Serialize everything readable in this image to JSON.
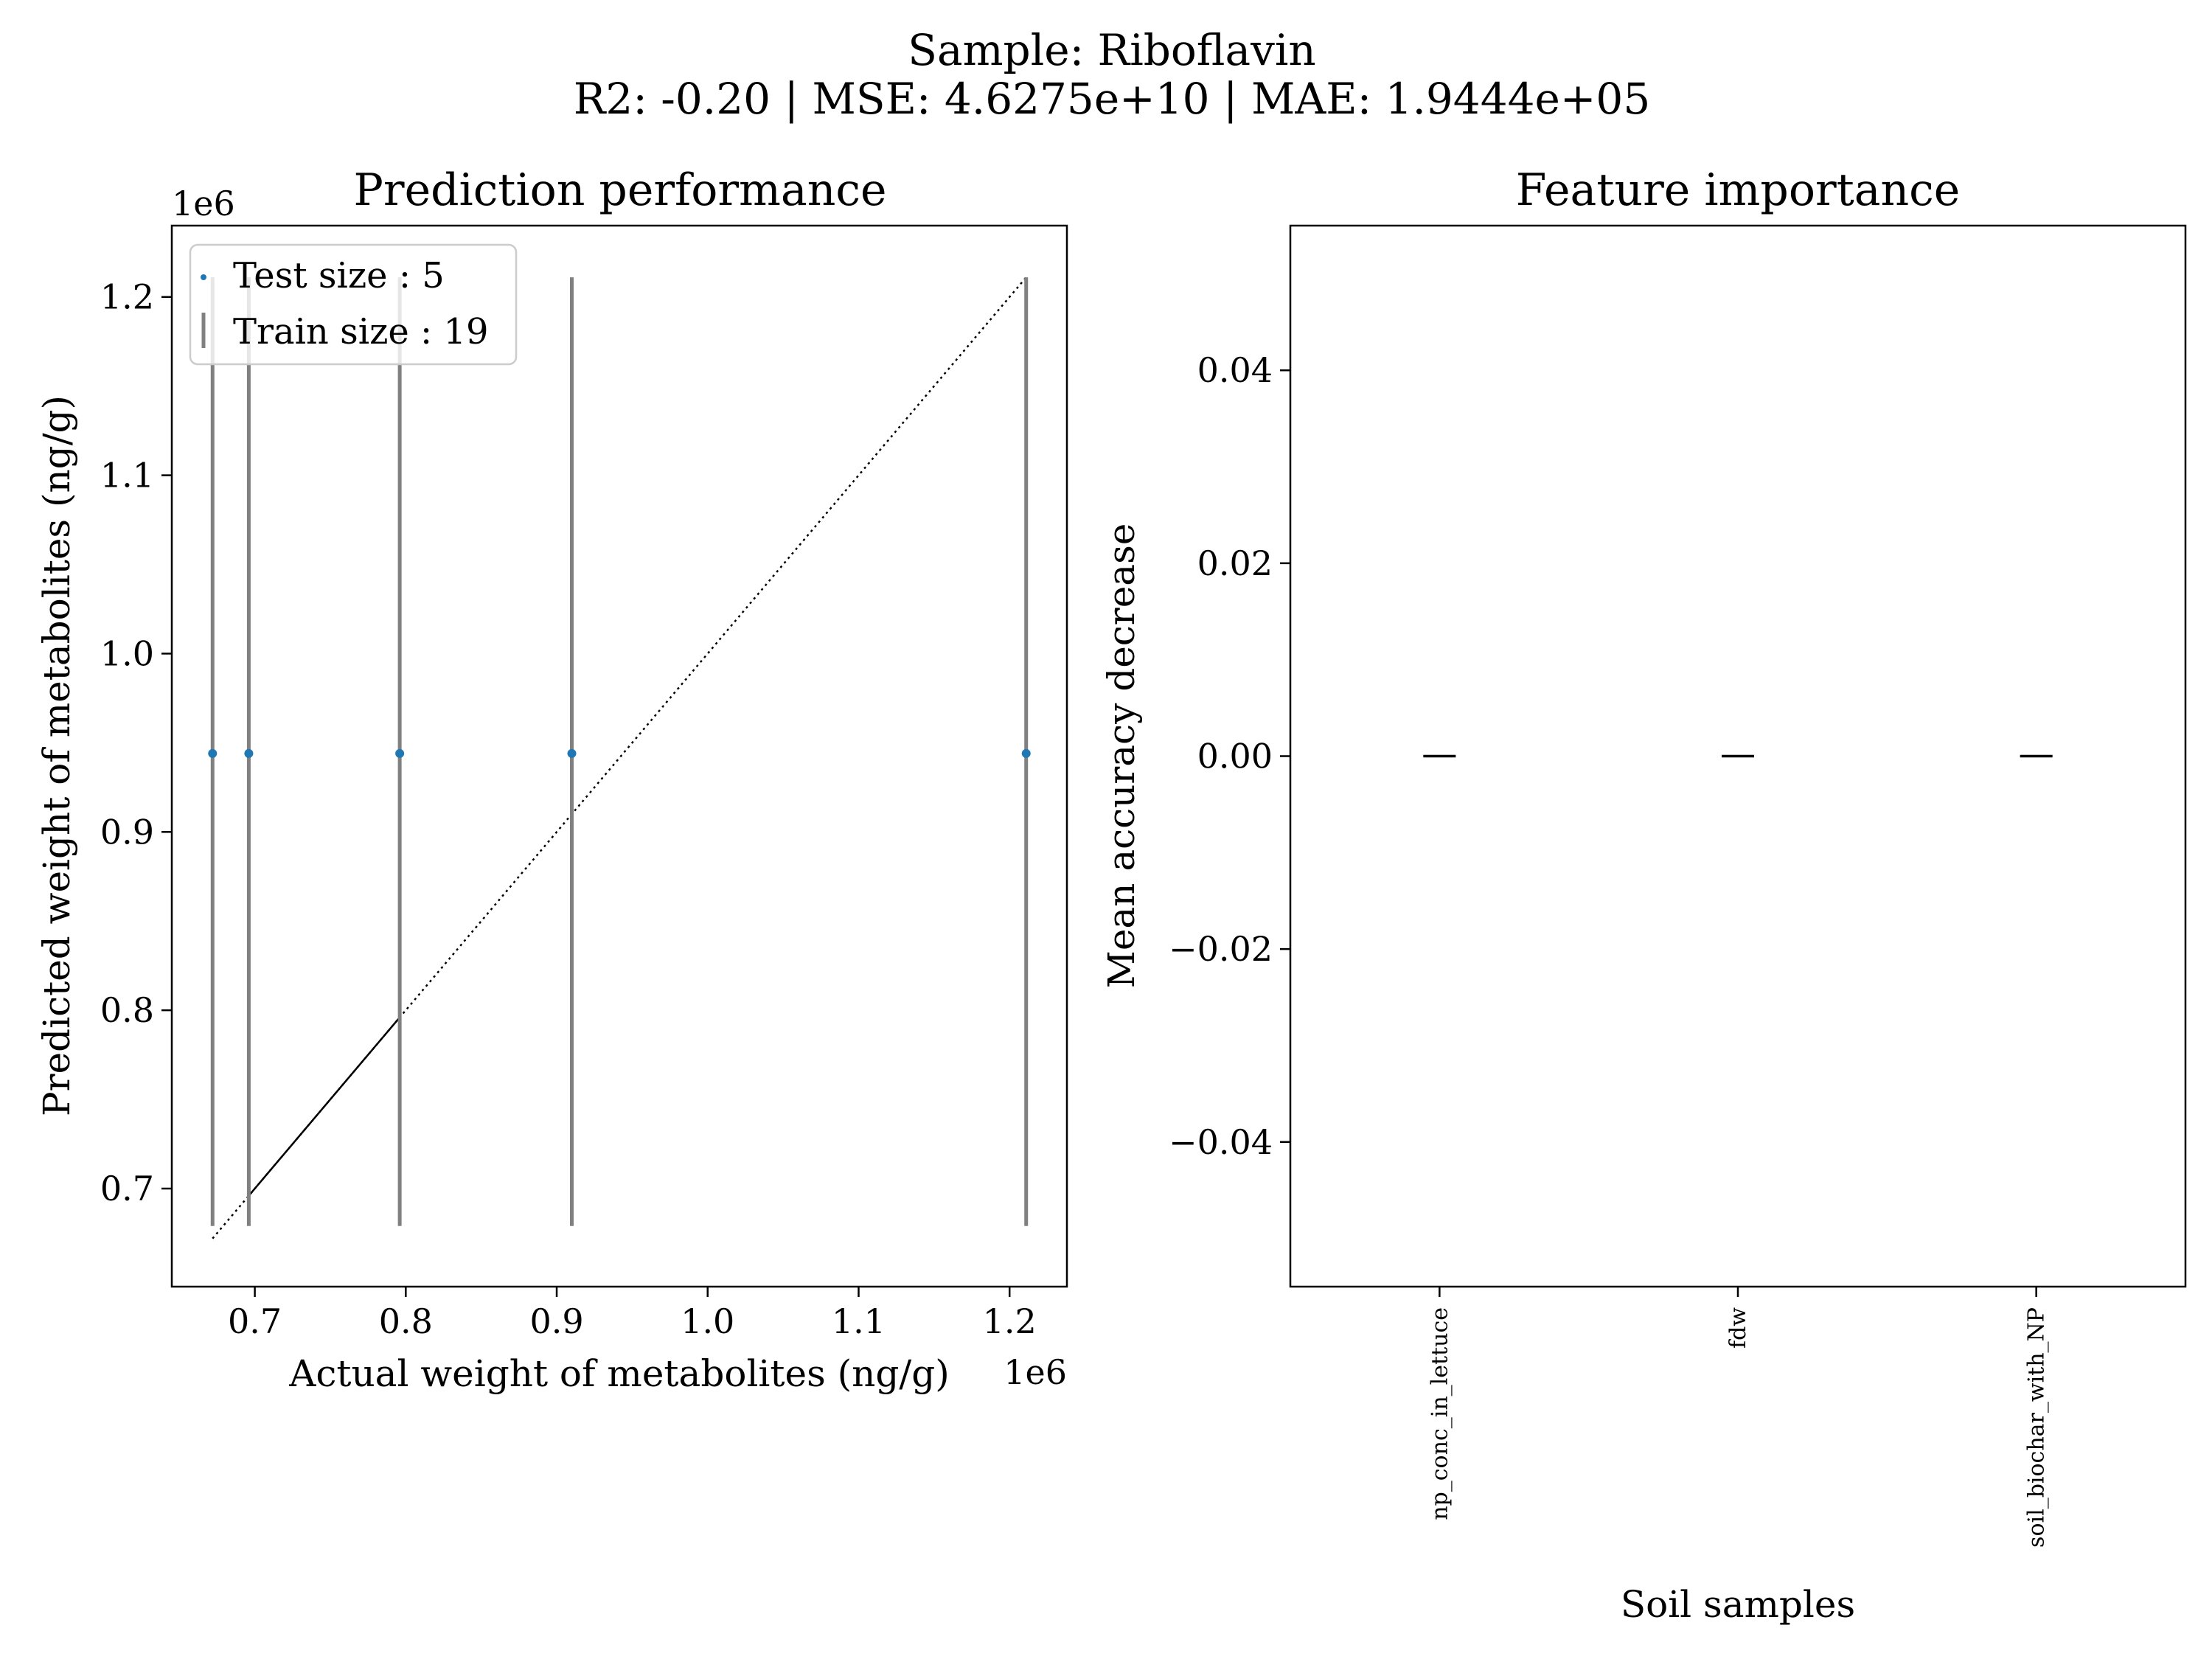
{
  "figure": {
    "suptitle_line1": "Sample: Riboflavin",
    "suptitle_line2": "R2: -0.20 | MSE: 4.6275e+10 | MAE: 1.9444e+05"
  },
  "chart_data": [
    {
      "type": "scatter",
      "title": "Prediction performance",
      "xlabel": "Actual weight of metabolites (ng/g)",
      "ylabel": "Predicted weight of metabolites (ng/g)",
      "x_offset_text": "1e6",
      "y_offset_text": "1e6",
      "xlim": [
        0.645,
        1.238
      ],
      "ylim": [
        0.645,
        1.24
      ],
      "xticks": [
        0.7,
        0.8,
        0.9,
        1.0,
        1.1,
        1.2
      ],
      "xtick_labels": [
        "0.7",
        "0.8",
        "0.9",
        "1.0",
        "1.1",
        "1.2"
      ],
      "yticks": [
        0.7,
        0.8,
        0.9,
        1.0,
        1.1,
        1.2
      ],
      "ytick_labels": [
        "0.7",
        "0.8",
        "0.9",
        "1.0",
        "1.1",
        "1.2"
      ],
      "legend": {
        "placement": "upper-left",
        "entries": [
          {
            "label": "Test size : 5",
            "marker": "point"
          },
          {
            "label": "Train size : 19",
            "marker": "vline"
          }
        ]
      },
      "test_points": [
        {
          "x": 0.672,
          "y": 0.944
        },
        {
          "x": 0.696,
          "y": 0.944
        },
        {
          "x": 0.796,
          "y": 0.944
        },
        {
          "x": 0.91,
          "y": 0.944
        },
        {
          "x": 1.211,
          "y": 0.944
        }
      ],
      "train_range_lines": [
        {
          "x": 0.672,
          "ymin": 0.679,
          "ymax": 1.211
        },
        {
          "x": 0.696,
          "ymin": 0.679,
          "ymax": 1.211
        },
        {
          "x": 0.796,
          "ymin": 0.679,
          "ymax": 1.211
        },
        {
          "x": 0.91,
          "ymin": 0.679,
          "ymax": 1.211
        },
        {
          "x": 1.211,
          "ymin": 0.679,
          "ymax": 1.211
        }
      ],
      "identity_line": {
        "x0": 0.672,
        "x1": 1.211
      },
      "solid_segment": {
        "x0": 0.696,
        "x1": 0.796
      },
      "colors": {
        "points": "#1f77b4",
        "range_lines": "#808080",
        "identity": "#000000"
      }
    },
    {
      "type": "bar",
      "title": "Feature importance",
      "xlabel": "Soil samples",
      "ylabel": "Mean accuracy decrease",
      "categories": [
        "np_conc_in_lettuce",
        "fdw",
        "soil_biochar_with_NP"
      ],
      "values": [
        0.0,
        0.0,
        0.0
      ],
      "ylim": [
        -0.055,
        0.055
      ],
      "yticks": [
        0.04,
        0.02,
        0.0,
        -0.02,
        -0.04
      ],
      "ytick_labels": [
        "0.04",
        "0.02",
        "0.00",
        "−0.02",
        "−0.04"
      ],
      "colors": {
        "bars": "#000000"
      }
    }
  ]
}
